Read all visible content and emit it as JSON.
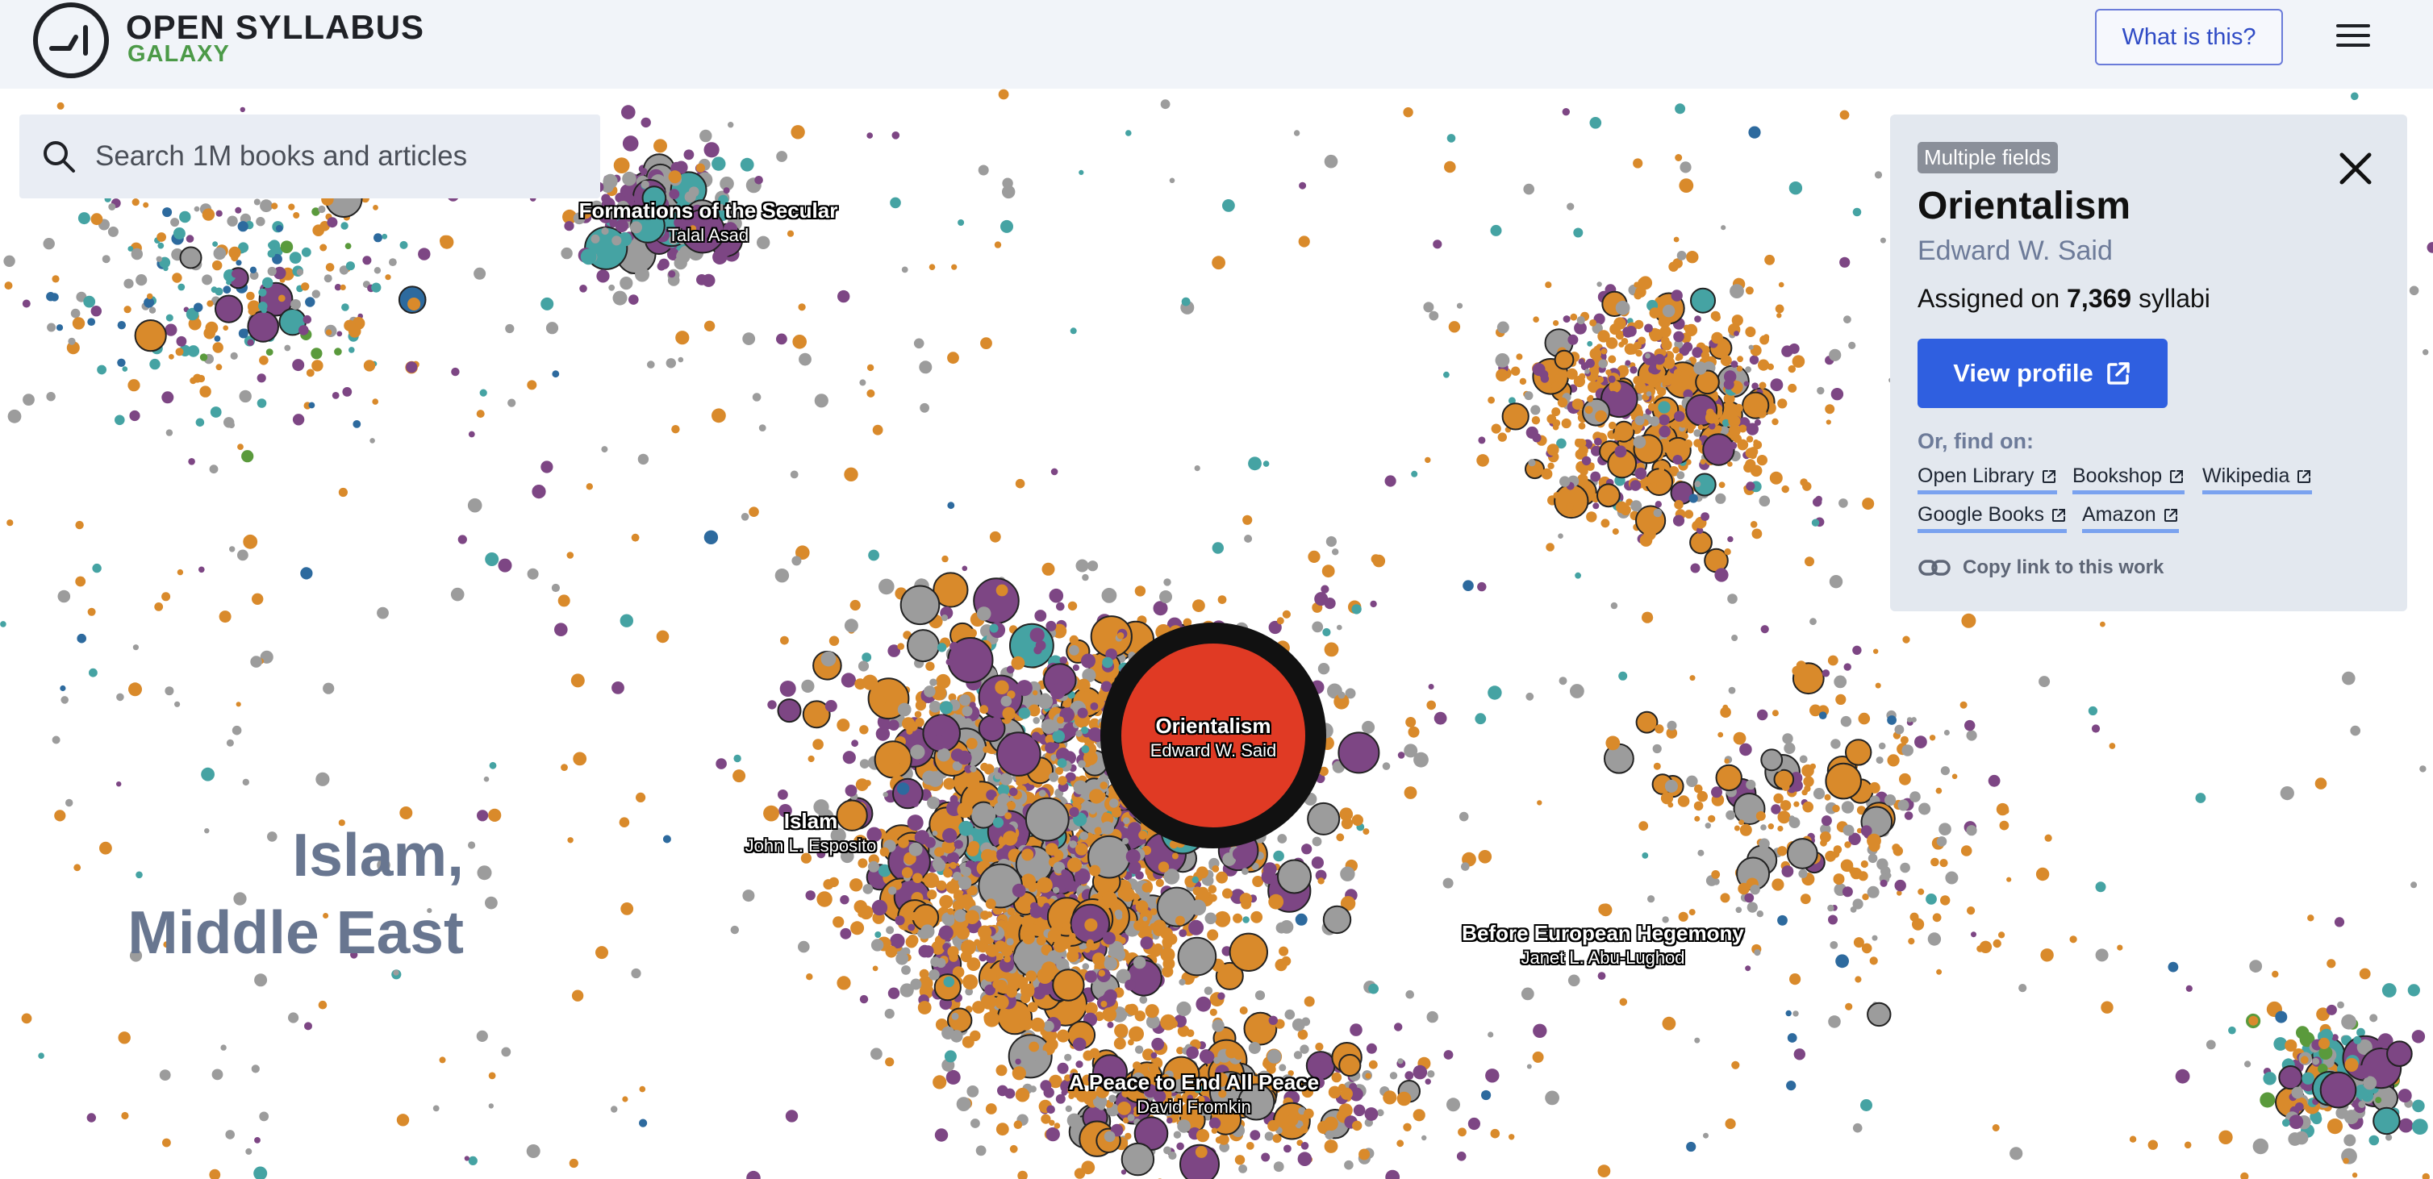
{
  "header": {
    "brand_title": "OPEN SYLLABUS",
    "brand_subtitle": "GALAXY",
    "what_button": "What is this?",
    "menu_icon": "hamburger-menu-icon"
  },
  "search": {
    "placeholder": "Search 1M books and articles",
    "icon": "search-icon"
  },
  "map": {
    "region_label_line1": "Islam,",
    "region_label_line2": "Middle East",
    "colors": {
      "orange": "#d98a2b",
      "purple": "#7d4684",
      "gray": "#9c9c9c",
      "teal": "#45a3a3",
      "blue": "#2d6a9e",
      "green": "#5a9a3c",
      "selected": "#e03a24"
    },
    "labels": [
      {
        "title": "Formations of the Secular",
        "author": "Talal Asad"
      },
      {
        "title": "Islam",
        "author": "John L. Esposito"
      },
      {
        "title": "Orientalism",
        "author": "Edward W. Said"
      },
      {
        "title": "Before European Hegemony",
        "author": "Janet L. Abu-Lughod"
      },
      {
        "title": "A Peace to End All Peace",
        "author": "David Fromkin"
      }
    ]
  },
  "panel": {
    "badge": "Multiple fields",
    "title": "Orientalism",
    "author": "Edward W. Said",
    "assigned_prefix": "Assigned on",
    "assigned_count": "7,369",
    "assigned_suffix": "syllabi",
    "view_profile": "View profile",
    "find_on": "Or, find on:",
    "links": [
      "Open Library",
      "Bookshop",
      "Wikipedia",
      "Google Books",
      "Amazon"
    ],
    "copy_link": "Copy link to this work"
  }
}
